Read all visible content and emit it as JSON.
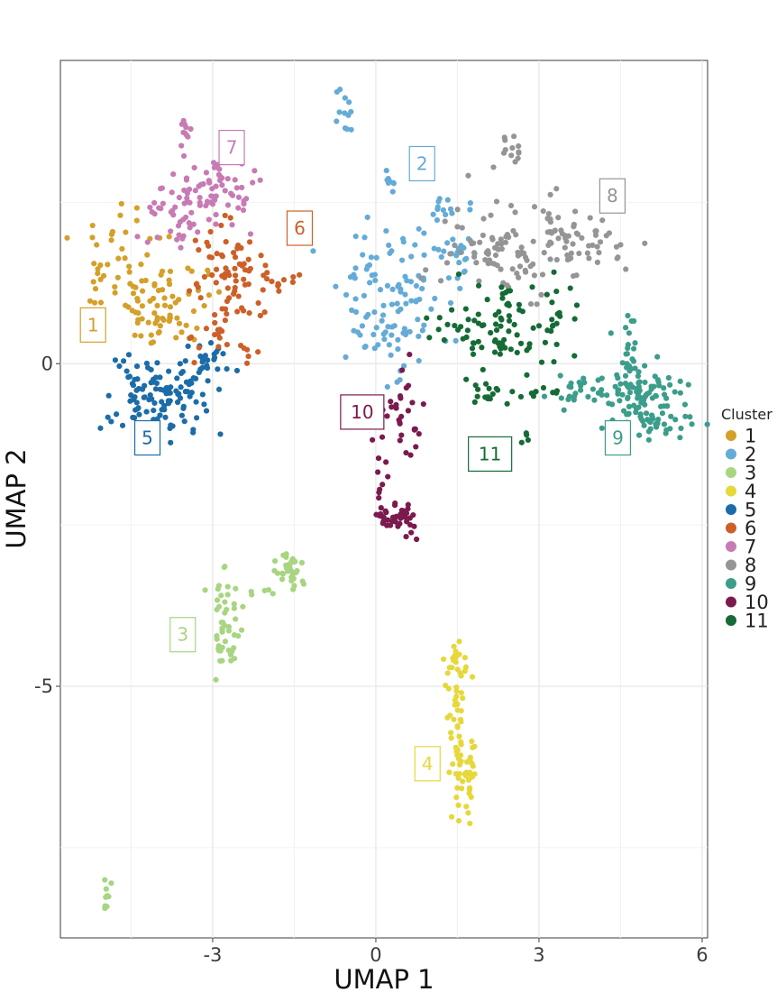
{
  "chart_data": {
    "type": "scatter",
    "title": "",
    "xlabel": "UMAP 1",
    "ylabel": "UMAP 2",
    "xlim": [
      -5.8,
      6.1
    ],
    "ylim": [
      -8.9,
      4.7
    ],
    "xticks": [
      -3,
      0,
      3,
      6
    ],
    "yticks": [
      -5,
      0
    ],
    "xticks_minor": [
      -4.5,
      -1.5,
      1.5,
      4.5
    ],
    "yticks_minor": [
      -7.5,
      -2.5,
      2.5
    ],
    "grid": true,
    "legend": {
      "title": "Cluster",
      "position": "right"
    },
    "series": [
      {
        "name": "1",
        "color": "#D4A02A",
        "label_pos": [
          -5.2,
          0.6
        ],
        "blobs": [
          [
            -4.0,
            0.75,
            0.35,
            0.3,
            45
          ],
          [
            -4.5,
            1.5,
            0.45,
            0.5,
            45
          ],
          [
            -5.1,
            1.4,
            0.15,
            0.35,
            14
          ],
          [
            -3.3,
            1.0,
            0.2,
            0.3,
            10
          ]
        ]
      },
      {
        "name": "2",
        "color": "#65ABD7",
        "label_pos": [
          0.85,
          3.1
        ],
        "blobs": [
          [
            0.2,
            1.0,
            0.55,
            0.55,
            110
          ],
          [
            -0.55,
            3.95,
            0.08,
            0.25,
            12
          ],
          [
            0.25,
            2.8,
            0.05,
            0.07,
            8
          ],
          [
            1.3,
            2.4,
            0.2,
            0.06,
            12
          ],
          [
            1.45,
            1.65,
            0.15,
            0.3,
            25
          ]
        ]
      },
      {
        "name": "3",
        "color": "#A8D581",
        "label_pos": [
          -3.55,
          -4.2
        ],
        "blobs": [
          [
            -2.8,
            -4.15,
            0.13,
            0.38,
            45
          ],
          [
            -1.6,
            -3.2,
            0.15,
            0.18,
            30
          ],
          [
            -2.2,
            -3.55,
            0.3,
            0.25,
            10
          ],
          [
            -4.95,
            -8.25,
            0.05,
            0.12,
            10
          ]
        ]
      },
      {
        "name": "4",
        "color": "#E6D83B",
        "label_pos": [
          0.95,
          -6.2
        ],
        "blobs": [
          [
            1.45,
            -4.7,
            0.12,
            0.2,
            20
          ],
          [
            1.5,
            -5.5,
            0.12,
            0.5,
            30
          ],
          [
            1.65,
            -6.4,
            0.12,
            0.3,
            40
          ]
        ]
      },
      {
        "name": "5",
        "color": "#1C6CA8",
        "label_pos": [
          -4.2,
          -1.15
        ],
        "blobs": [
          [
            -4.0,
            -0.45,
            0.48,
            0.32,
            120
          ],
          [
            -3.05,
            0.05,
            0.2,
            0.14,
            20
          ]
        ]
      },
      {
        "name": "6",
        "color": "#CC6028",
        "label_pos": [
          -1.4,
          2.1
        ],
        "blobs": [
          [
            -2.6,
            1.3,
            0.35,
            0.45,
            60
          ],
          [
            -2.8,
            0.5,
            0.3,
            0.2,
            20
          ],
          [
            -1.7,
            1.3,
            0.25,
            0.1,
            12
          ],
          [
            -3.0,
            1.6,
            0.2,
            0.2,
            10
          ]
        ]
      },
      {
        "name": "7",
        "color": "#C77BB4",
        "label_pos": [
          -2.65,
          3.35
        ],
        "blobs": [
          [
            -3.5,
            2.3,
            0.5,
            0.25,
            50
          ],
          [
            -3.0,
            2.7,
            0.3,
            0.3,
            50
          ],
          [
            -3.5,
            3.6,
            0.06,
            0.12,
            10
          ]
        ]
      },
      {
        "name": "8",
        "color": "#959595",
        "label_pos": [
          4.35,
          2.6
        ],
        "blobs": [
          [
            2.3,
            1.8,
            0.6,
            0.4,
            90
          ],
          [
            3.5,
            1.9,
            0.45,
            0.4,
            40
          ],
          [
            4.0,
            1.9,
            0.35,
            0.15,
            15
          ],
          [
            2.5,
            3.4,
            0.1,
            0.18,
            12
          ]
        ]
      },
      {
        "name": "9",
        "color": "#3C9D8B",
        "label_pos": [
          4.45,
          -1.15
        ],
        "blobs": [
          [
            5.0,
            -0.6,
            0.35,
            0.25,
            90
          ],
          [
            4.0,
            -0.45,
            0.45,
            0.13,
            35
          ],
          [
            4.7,
            0.1,
            0.12,
            0.35,
            25
          ],
          [
            5.35,
            -0.95,
            0.2,
            0.12,
            15
          ]
        ]
      },
      {
        "name": "10",
        "color": "#7B1A4E",
        "label_pos": [
          -0.25,
          -0.75
        ],
        "blobs": [
          [
            0.4,
            -2.4,
            0.2,
            0.15,
            40
          ],
          [
            0.5,
            -0.85,
            0.25,
            0.35,
            30
          ],
          [
            0.1,
            -1.8,
            0.1,
            0.3,
            10
          ]
        ]
      },
      {
        "name": "11",
        "color": "#156B35",
        "label_pos": [
          2.1,
          -1.4
        ],
        "blobs": [
          [
            2.2,
            0.55,
            0.55,
            0.35,
            70
          ],
          [
            3.2,
            0.55,
            0.25,
            0.35,
            20
          ],
          [
            2.0,
            -0.4,
            0.2,
            0.15,
            15
          ],
          [
            3.0,
            -0.45,
            0.2,
            0.05,
            10
          ],
          [
            2.75,
            -1.15,
            0.05,
            0.05,
            4
          ],
          [
            2.3,
            1.05,
            0.1,
            0.1,
            8
          ]
        ]
      }
    ]
  }
}
